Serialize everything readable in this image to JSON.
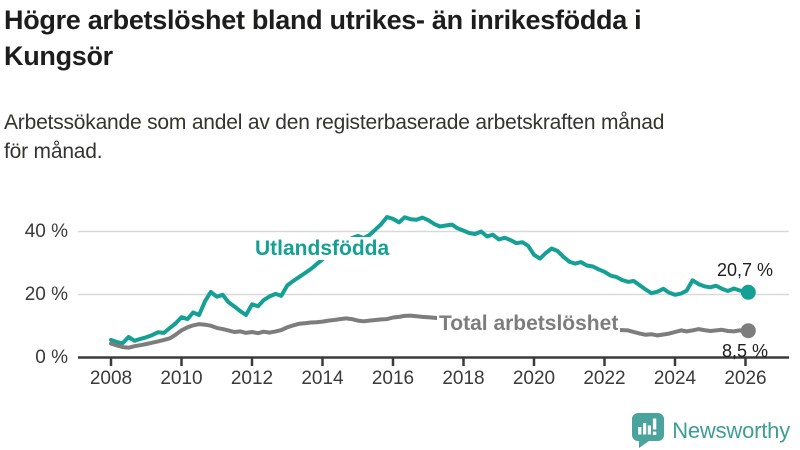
{
  "header": {
    "title": "Högre arbetslöshet bland utrikes- än inrikesfödda i\nKungsör",
    "subtitle": "Arbetssökande som andel av den registerbaserade arbetskraften månad\nför månad."
  },
  "footer": {
    "brand": "Newsworthy",
    "brand_color": "#3e9d96",
    "logo_icon": "bar-chart-speech-bubble-icon"
  },
  "colors": {
    "series_foreign_born": "#14a094",
    "series_total": "#7d7d7d",
    "gridline": "#d9d9d9",
    "axis": "#3b3b3b"
  },
  "chart_data": {
    "type": "line",
    "title": "Högre arbetslöshet bland utrikes- än inrikesfödda i Kungsör",
    "subtitle": "Arbetssökande som andel av den registerbaserade arbetskraften månad för månad.",
    "xlabel": "",
    "ylabel": "",
    "grid": "horizontal",
    "legend_position": "inline-labels",
    "xlim": [
      2007,
      2027.2
    ],
    "ylim": [
      0,
      47
    ],
    "x_ticks": [
      2008,
      2010,
      2012,
      2014,
      2016,
      2018,
      2020,
      2022,
      2024,
      2026
    ],
    "y_ticks": [
      {
        "value": 0,
        "label": "0 %"
      },
      {
        "value": 20,
        "label": "20 %"
      },
      {
        "value": 40,
        "label": "40 %"
      }
    ],
    "series": [
      {
        "name": "Utlandsfödda",
        "color": "#14a094",
        "end_label": "20,7 %",
        "end_value": 20.7,
        "points": [
          [
            2008.0,
            5.6
          ],
          [
            2008.17,
            4.9
          ],
          [
            2008.33,
            4.5
          ],
          [
            2008.5,
            6.5
          ],
          [
            2008.67,
            5.3
          ],
          [
            2008.83,
            5.9
          ],
          [
            2009.0,
            6.4
          ],
          [
            2009.17,
            7.1
          ],
          [
            2009.33,
            8.0
          ],
          [
            2009.5,
            7.8
          ],
          [
            2009.67,
            9.4
          ],
          [
            2009.83,
            10.8
          ],
          [
            2010.0,
            12.8
          ],
          [
            2010.17,
            12.2
          ],
          [
            2010.33,
            14.3
          ],
          [
            2010.5,
            13.5
          ],
          [
            2010.67,
            17.9
          ],
          [
            2010.83,
            20.8
          ],
          [
            2011.0,
            19.3
          ],
          [
            2011.17,
            19.9
          ],
          [
            2011.33,
            17.6
          ],
          [
            2011.5,
            16.2
          ],
          [
            2011.67,
            14.7
          ],
          [
            2011.83,
            13.5
          ],
          [
            2012.0,
            16.9
          ],
          [
            2012.17,
            16.3
          ],
          [
            2012.33,
            18.2
          ],
          [
            2012.5,
            19.4
          ],
          [
            2012.67,
            20.2
          ],
          [
            2012.83,
            19.6
          ],
          [
            2013.0,
            22.9
          ],
          [
            2013.17,
            24.3
          ],
          [
            2013.33,
            25.5
          ],
          [
            2013.5,
            26.8
          ],
          [
            2013.67,
            28.1
          ],
          [
            2013.83,
            29.6
          ],
          [
            2014.0,
            31.2
          ],
          [
            2014.17,
            32.4
          ],
          [
            2014.33,
            33.6
          ],
          [
            2014.5,
            34.8
          ],
          [
            2014.67,
            36.3
          ],
          [
            2014.83,
            37.9
          ],
          [
            2015.0,
            38.6
          ],
          [
            2015.17,
            37.9
          ],
          [
            2015.33,
            38.9
          ],
          [
            2015.5,
            40.6
          ],
          [
            2015.67,
            42.4
          ],
          [
            2015.83,
            44.6
          ],
          [
            2016.0,
            44.0
          ],
          [
            2016.17,
            42.9
          ],
          [
            2016.33,
            44.5
          ],
          [
            2016.5,
            43.9
          ],
          [
            2016.67,
            43.7
          ],
          [
            2016.83,
            44.4
          ],
          [
            2017.0,
            43.6
          ],
          [
            2017.17,
            42.4
          ],
          [
            2017.33,
            41.6
          ],
          [
            2017.5,
            41.9
          ],
          [
            2017.67,
            42.2
          ],
          [
            2017.83,
            41.0
          ],
          [
            2018.0,
            40.3
          ],
          [
            2018.17,
            39.5
          ],
          [
            2018.33,
            39.2
          ],
          [
            2018.5,
            40.0
          ],
          [
            2018.67,
            38.4
          ],
          [
            2018.83,
            39.0
          ],
          [
            2019.0,
            37.5
          ],
          [
            2019.17,
            38.0
          ],
          [
            2019.33,
            37.3
          ],
          [
            2019.5,
            36.3
          ],
          [
            2019.67,
            36.6
          ],
          [
            2019.83,
            35.5
          ],
          [
            2020.0,
            32.6
          ],
          [
            2020.17,
            31.4
          ],
          [
            2020.33,
            33.1
          ],
          [
            2020.5,
            34.6
          ],
          [
            2020.67,
            33.8
          ],
          [
            2020.83,
            32.0
          ],
          [
            2021.0,
            30.4
          ],
          [
            2021.17,
            29.8
          ],
          [
            2021.33,
            30.3
          ],
          [
            2021.5,
            29.2
          ],
          [
            2021.67,
            28.9
          ],
          [
            2021.83,
            28.0
          ],
          [
            2022.0,
            27.2
          ],
          [
            2022.17,
            26.0
          ],
          [
            2022.33,
            25.6
          ],
          [
            2022.5,
            24.6
          ],
          [
            2022.67,
            24.0
          ],
          [
            2022.83,
            24.3
          ],
          [
            2023.0,
            22.9
          ],
          [
            2023.17,
            21.6
          ],
          [
            2023.33,
            20.4
          ],
          [
            2023.5,
            20.9
          ],
          [
            2023.67,
            21.8
          ],
          [
            2023.83,
            20.6
          ],
          [
            2024.0,
            19.9
          ],
          [
            2024.17,
            20.3
          ],
          [
            2024.33,
            21.2
          ],
          [
            2024.5,
            24.5
          ],
          [
            2024.67,
            23.3
          ],
          [
            2024.83,
            22.6
          ],
          [
            2025.0,
            22.3
          ],
          [
            2025.17,
            22.8
          ],
          [
            2025.33,
            21.8
          ],
          [
            2025.5,
            21.1
          ],
          [
            2025.67,
            21.9
          ],
          [
            2025.83,
            21.3
          ],
          [
            2026.08,
            20.7
          ]
        ]
      },
      {
        "name": "Total arbetslöshet",
        "color": "#7d7d7d",
        "end_label": "8,5 %",
        "end_value": 8.5,
        "points": [
          [
            2008.0,
            4.4
          ],
          [
            2008.17,
            3.8
          ],
          [
            2008.33,
            3.3
          ],
          [
            2008.5,
            3.1
          ],
          [
            2008.67,
            3.6
          ],
          [
            2008.83,
            3.9
          ],
          [
            2009.0,
            4.3
          ],
          [
            2009.17,
            4.7
          ],
          [
            2009.33,
            5.1
          ],
          [
            2009.5,
            5.6
          ],
          [
            2009.67,
            6.1
          ],
          [
            2009.83,
            7.2
          ],
          [
            2010.0,
            8.6
          ],
          [
            2010.17,
            9.6
          ],
          [
            2010.33,
            10.2
          ],
          [
            2010.5,
            10.6
          ],
          [
            2010.67,
            10.4
          ],
          [
            2010.83,
            10.1
          ],
          [
            2011.0,
            9.4
          ],
          [
            2011.17,
            9.0
          ],
          [
            2011.33,
            8.6
          ],
          [
            2011.5,
            8.1
          ],
          [
            2011.67,
            8.3
          ],
          [
            2011.83,
            7.8
          ],
          [
            2012.0,
            8.1
          ],
          [
            2012.17,
            7.7
          ],
          [
            2012.33,
            8.2
          ],
          [
            2012.5,
            7.9
          ],
          [
            2012.67,
            8.3
          ],
          [
            2012.83,
            8.7
          ],
          [
            2013.0,
            9.6
          ],
          [
            2013.17,
            10.2
          ],
          [
            2013.33,
            10.7
          ],
          [
            2013.5,
            10.9
          ],
          [
            2013.67,
            11.1
          ],
          [
            2013.83,
            11.2
          ],
          [
            2014.0,
            11.4
          ],
          [
            2014.17,
            11.7
          ],
          [
            2014.33,
            11.9
          ],
          [
            2014.5,
            12.2
          ],
          [
            2014.67,
            12.4
          ],
          [
            2014.83,
            12.2
          ],
          [
            2015.0,
            11.7
          ],
          [
            2015.17,
            11.5
          ],
          [
            2015.33,
            11.7
          ],
          [
            2015.5,
            11.9
          ],
          [
            2015.67,
            12.1
          ],
          [
            2015.83,
            12.2
          ],
          [
            2016.0,
            12.7
          ],
          [
            2016.17,
            12.9
          ],
          [
            2016.33,
            13.2
          ],
          [
            2016.5,
            13.3
          ],
          [
            2016.67,
            13.1
          ],
          [
            2016.83,
            12.9
          ],
          [
            2017.0,
            12.8
          ],
          [
            2017.17,
            12.6
          ],
          [
            2017.33,
            12.4
          ],
          [
            2017.5,
            12.2
          ],
          [
            2017.67,
            12.0
          ],
          [
            2017.83,
            11.8
          ],
          [
            2018.0,
            11.6
          ],
          [
            2018.17,
            11.4
          ],
          [
            2018.33,
            11.3
          ],
          [
            2018.5,
            11.2
          ],
          [
            2018.67,
            11.0
          ],
          [
            2018.83,
            10.8
          ],
          [
            2019.0,
            10.7
          ],
          [
            2019.17,
            10.5
          ],
          [
            2019.33,
            10.4
          ],
          [
            2019.5,
            10.2
          ],
          [
            2019.67,
            10.1
          ],
          [
            2019.83,
            10.2
          ],
          [
            2020.0,
            10.6
          ],
          [
            2020.17,
            11.0
          ],
          [
            2020.33,
            11.2
          ],
          [
            2020.5,
            11.0
          ],
          [
            2020.67,
            10.8
          ],
          [
            2020.83,
            10.5
          ],
          [
            2021.0,
            10.2
          ],
          [
            2021.17,
            10.0
          ],
          [
            2021.33,
            9.8
          ],
          [
            2021.5,
            9.6
          ],
          [
            2021.67,
            9.4
          ],
          [
            2021.83,
            9.2
          ],
          [
            2022.0,
            9.0
          ],
          [
            2022.17,
            8.9
          ],
          [
            2022.33,
            8.8
          ],
          [
            2022.5,
            8.7
          ],
          [
            2022.67,
            8.6
          ],
          [
            2022.83,
            8.1
          ],
          [
            2023.0,
            7.6
          ],
          [
            2023.17,
            7.2
          ],
          [
            2023.33,
            7.4
          ],
          [
            2023.5,
            7.0
          ],
          [
            2023.67,
            7.3
          ],
          [
            2023.83,
            7.6
          ],
          [
            2024.0,
            8.1
          ],
          [
            2024.17,
            8.6
          ],
          [
            2024.33,
            8.3
          ],
          [
            2024.5,
            8.6
          ],
          [
            2024.67,
            9.0
          ],
          [
            2024.83,
            8.7
          ],
          [
            2025.0,
            8.4
          ],
          [
            2025.17,
            8.6
          ],
          [
            2025.33,
            8.8
          ],
          [
            2025.5,
            8.4
          ],
          [
            2025.67,
            8.3
          ],
          [
            2025.83,
            8.6
          ],
          [
            2026.08,
            8.5
          ]
        ]
      }
    ]
  }
}
